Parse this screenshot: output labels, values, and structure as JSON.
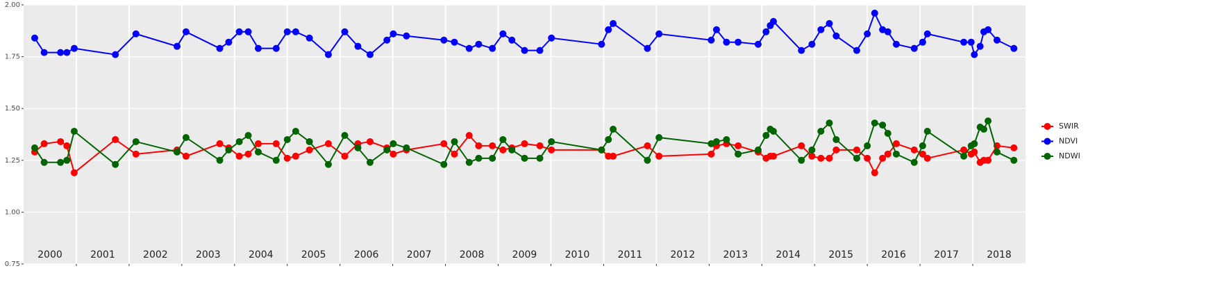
{
  "chart_data": {
    "type": "line",
    "x": [
      2000.21,
      2000.39,
      2000.7,
      2000.82,
      2000.96,
      2001.74,
      2002.13,
      2002.91,
      2003.08,
      2003.72,
      2003.89,
      2004.09,
      2004.26,
      2004.45,
      2004.79,
      2005.0,
      2005.16,
      2005.42,
      2005.78,
      2006.09,
      2006.34,
      2006.57,
      2006.89,
      2007.01,
      2007.26,
      2007.97,
      2008.17,
      2008.45,
      2008.63,
      2008.89,
      2009.09,
      2009.26,
      2009.5,
      2009.79,
      2010.01,
      2010.96,
      2011.09,
      2011.18,
      2011.83,
      2012.05,
      2013.04,
      2013.14,
      2013.33,
      2013.55,
      2013.93,
      2014.08,
      2014.16,
      2014.22,
      2014.75,
      2014.95,
      2015.12,
      2015.28,
      2015.41,
      2015.8,
      2016.0,
      2016.14,
      2016.29,
      2016.39,
      2016.55,
      2016.89,
      2017.05,
      2017.14,
      2017.83,
      2017.97,
      2018.03,
      2018.14,
      2018.21,
      2018.29,
      2018.46,
      2018.78
    ],
    "series": [
      {
        "name": "SWIR",
        "color": "#ff0000",
        "values": [
          1.29,
          1.33,
          1.34,
          1.32,
          1.19,
          1.35,
          1.28,
          1.3,
          1.27,
          1.33,
          1.31,
          1.27,
          1.28,
          1.33,
          1.33,
          1.26,
          1.27,
          1.3,
          1.33,
          1.27,
          1.33,
          1.34,
          1.31,
          1.28,
          1.3,
          1.33,
          1.28,
          1.37,
          1.32,
          1.32,
          1.3,
          1.31,
          1.33,
          1.32,
          1.3,
          1.3,
          1.27,
          1.27,
          1.32,
          1.27,
          1.28,
          1.32,
          1.33,
          1.32,
          1.29,
          1.26,
          1.27,
          1.27,
          1.32,
          1.27,
          1.26,
          1.26,
          1.3,
          1.3,
          1.26,
          1.19,
          1.26,
          1.28,
          1.33,
          1.3,
          1.28,
          1.26,
          1.3,
          1.28,
          1.29,
          1.24,
          1.25,
          1.25,
          1.32,
          1.31
        ]
      },
      {
        "name": "NDVI",
        "color": "#0000ff",
        "values": [
          1.84,
          1.77,
          1.77,
          1.77,
          1.79,
          1.76,
          1.86,
          1.8,
          1.87,
          1.79,
          1.82,
          1.87,
          1.87,
          1.79,
          1.79,
          1.87,
          1.87,
          1.84,
          1.76,
          1.87,
          1.8,
          1.76,
          1.83,
          1.86,
          1.85,
          1.83,
          1.82,
          1.79,
          1.81,
          1.79,
          1.86,
          1.83,
          1.78,
          1.78,
          1.84,
          1.81,
          1.88,
          1.91,
          1.79,
          1.86,
          1.83,
          1.88,
          1.82,
          1.82,
          1.81,
          1.87,
          1.9,
          1.92,
          1.78,
          1.81,
          1.88,
          1.91,
          1.85,
          1.78,
          1.86,
          1.96,
          1.88,
          1.87,
          1.81,
          1.79,
          1.82,
          1.86,
          1.82,
          1.82,
          1.76,
          1.8,
          1.87,
          1.88,
          1.83,
          1.79
        ]
      },
      {
        "name": "NDWI",
        "color": "#006400",
        "values": [
          1.31,
          1.24,
          1.24,
          1.25,
          1.39,
          1.23,
          1.34,
          1.29,
          1.36,
          1.25,
          1.3,
          1.34,
          1.37,
          1.29,
          1.25,
          1.35,
          1.39,
          1.34,
          1.23,
          1.37,
          1.31,
          1.24,
          1.3,
          1.33,
          1.31,
          1.23,
          1.34,
          1.24,
          1.26,
          1.26,
          1.35,
          1.3,
          1.26,
          1.26,
          1.34,
          1.3,
          1.35,
          1.4,
          1.25,
          1.36,
          1.33,
          1.34,
          1.35,
          1.28,
          1.3,
          1.37,
          1.4,
          1.39,
          1.25,
          1.3,
          1.39,
          1.43,
          1.35,
          1.26,
          1.32,
          1.43,
          1.42,
          1.38,
          1.28,
          1.24,
          1.32,
          1.39,
          1.27,
          1.32,
          1.33,
          1.41,
          1.4,
          1.44,
          1.29,
          1.25
        ]
      }
    ],
    "xlim": [
      2000,
      2019
    ],
    "xticks": [
      {
        "value": 2000.5,
        "label": "2000"
      },
      {
        "value": 2001.5,
        "label": "2001"
      },
      {
        "value": 2002.5,
        "label": "2002"
      },
      {
        "value": 2003.5,
        "label": "2003"
      },
      {
        "value": 2004.5,
        "label": "2004"
      },
      {
        "value": 2005.5,
        "label": "2005"
      },
      {
        "value": 2006.5,
        "label": "2006"
      },
      {
        "value": 2007.5,
        "label": "2007"
      },
      {
        "value": 2008.5,
        "label": "2008"
      },
      {
        "value": 2009.5,
        "label": "2009"
      },
      {
        "value": 2010.5,
        "label": "2010"
      },
      {
        "value": 2011.5,
        "label": "2011"
      },
      {
        "value": 2012.5,
        "label": "2012"
      },
      {
        "value": 2013.5,
        "label": "2013"
      },
      {
        "value": 2014.5,
        "label": "2014"
      },
      {
        "value": 2015.5,
        "label": "2015"
      },
      {
        "value": 2016.5,
        "label": "2016"
      },
      {
        "value": 2017.5,
        "label": "2017"
      },
      {
        "value": 2018.5,
        "label": "2018"
      }
    ],
    "year_boundaries": [
      2001,
      2002,
      2003,
      2004,
      2005,
      2006,
      2007,
      2008,
      2009,
      2010,
      2011,
      2012,
      2013,
      2014,
      2015,
      2016,
      2017,
      2018
    ],
    "ylim": [
      0.75,
      2
    ],
    "yticks": [
      0.75,
      {
        "value": 1,
        "label": "1.00"
      },
      1.25,
      {
        "value": 1.5,
        "label": "1.50"
      },
      1.75,
      {
        "value": 2,
        "label": "2.00"
      }
    ],
    "grid": true,
    "legend": "right"
  }
}
